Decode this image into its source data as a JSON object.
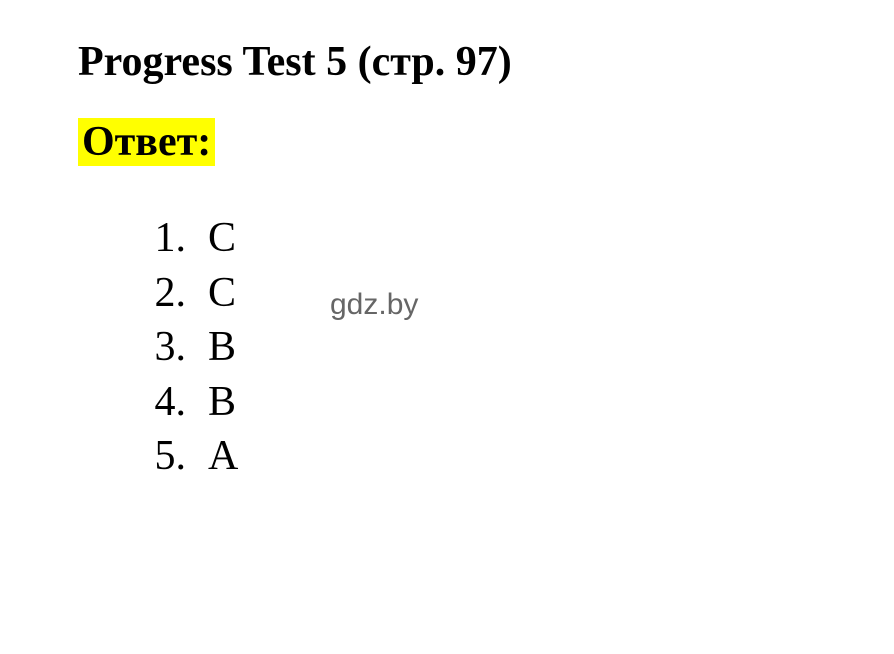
{
  "heading": "Progress Test 5 (стр. 97)",
  "answer_label": "Ответ:",
  "answers": [
    {
      "num": "1.",
      "val": "C"
    },
    {
      "num": "2.",
      "val": "C"
    },
    {
      "num": "3.",
      "val": "B"
    },
    {
      "num": "4.",
      "val": "B"
    },
    {
      "num": "5.",
      "val": "A"
    }
  ],
  "watermark": "gdz.by",
  "colors": {
    "background": "#ffffff",
    "text": "#000000",
    "highlight": "#ffff00",
    "watermark": "#666666"
  },
  "typography": {
    "heading_fontsize": 42,
    "body_fontsize": 42,
    "watermark_fontsize": 30,
    "font_family": "Times New Roman"
  }
}
